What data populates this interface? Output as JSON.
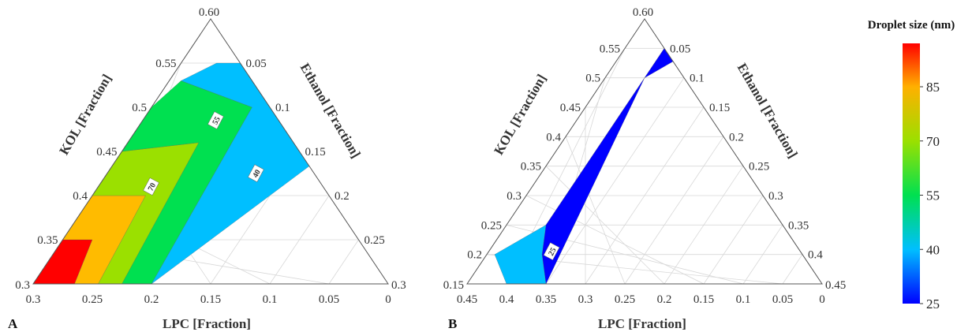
{
  "colorbar": {
    "title": "Droplet size (nm)",
    "ticks": [
      25,
      40,
      55,
      70,
      85
    ],
    "min": 25,
    "max": 97,
    "stops": [
      {
        "v": 25,
        "color": "#0000ff"
      },
      {
        "v": 40,
        "color": "#00bfff"
      },
      {
        "v": 55,
        "color": "#00e050"
      },
      {
        "v": 70,
        "color": "#9be000"
      },
      {
        "v": 85,
        "color": "#ffb000"
      },
      {
        "v": 97,
        "color": "#ff0000"
      }
    ]
  },
  "chart_data": [
    {
      "type": "ternary-contour",
      "panel": "A",
      "axes": {
        "bottom": {
          "label": "LPC [Fraction]",
          "range": [
            0.3,
            0
          ],
          "ticks": [
            "0.3",
            "0.25",
            "0.2",
            "0.15",
            "0.1",
            "0.05",
            "0"
          ]
        },
        "left": {
          "label": "KOL [Fraction]",
          "range": [
            0.3,
            0.6
          ],
          "ticks": [
            "0.3",
            "0.35",
            "0.4",
            "0.45",
            "0.5",
            "0.55",
            "0.60"
          ]
        },
        "right": {
          "label": "Ethanol [Fraction]",
          "range": [
            0.05,
            0.3
          ],
          "ticks": [
            "0.05",
            "0.1",
            "0.15",
            "0.2",
            "0.25",
            "0.3"
          ]
        }
      },
      "regions": [
        {
          "value": 95,
          "color": "#ff0000",
          "polygon": [
            [
              0.3,
              0.35
            ],
            [
              0.275,
              0.35
            ],
            [
              0.265,
              0.3
            ],
            [
              0.3,
              0.3
            ]
          ]
        },
        {
          "value": 85,
          "color": "#ffbb00",
          "polygon": [
            [
              0.3,
              0.4
            ],
            [
              0.255,
              0.4
            ],
            [
              0.245,
              0.3
            ],
            [
              0.265,
              0.3
            ],
            [
              0.275,
              0.35
            ],
            [
              0.3,
              0.35
            ]
          ]
        },
        {
          "value": 70,
          "color": "#9be000",
          "polygon": [
            [
              0.3,
              0.45
            ],
            [
              0.24,
              0.46
            ],
            [
              0.225,
              0.3
            ],
            [
              0.245,
              0.3
            ],
            [
              0.255,
              0.4
            ],
            [
              0.3,
              0.4
            ]
          ]
        },
        {
          "value": 55,
          "color": "#00e050",
          "polygon": [
            [
              0.3,
              0.5
            ],
            [
              0.29,
              0.53
            ],
            [
              0.215,
              0.5
            ],
            [
              0.2,
              0.3
            ],
            [
              0.225,
              0.3
            ],
            [
              0.24,
              0.46
            ],
            [
              0.3,
              0.45
            ]
          ]
        },
        {
          "value": 40,
          "color": "#00bfff",
          "polygon": [
            [
              0.29,
              0.53
            ],
            [
              0.27,
              0.55
            ],
            [
              0.11,
              0.55
            ],
            [
              0.1,
              0.5
            ],
            [
              0.2,
              0.3
            ],
            [
              0.215,
              0.5
            ]
          ]
        }
      ],
      "contour_labels": [
        {
          "text": "70",
          "lpc": 0.255,
          "kol": 0.41
        },
        {
          "text": "55",
          "lpc": 0.238,
          "kol": 0.485
        },
        {
          "text": "40",
          "lpc": 0.174,
          "kol": 0.425
        }
      ]
    },
    {
      "type": "ternary-contour",
      "panel": "B",
      "axes": {
        "bottom": {
          "label": "LPC [Fraction]",
          "range": [
            0.45,
            0
          ],
          "ticks": [
            "0.45",
            "0.4",
            "0.35",
            "0.3",
            "0.25",
            "0.2",
            "0.15",
            "0.1",
            "0.05",
            "0"
          ]
        },
        "left": {
          "label": "KOL [Fraction]",
          "range": [
            0.15,
            0.6
          ],
          "ticks": [
            "0.15",
            "0.2",
            "0.25",
            "0.3",
            "0.35",
            "0.4",
            "0.45",
            "0.5",
            "0.55",
            "0.60"
          ]
        },
        "right": {
          "label": "Ethanol [Fraction]",
          "range": [
            0.05,
            0.45
          ],
          "ticks": [
            "0.05",
            "0.1",
            "0.15",
            "0.2",
            "0.25",
            "0.3",
            "0.35",
            "0.4",
            "0.45"
          ]
        }
      },
      "regions": [
        {
          "value": 25,
          "color": "#0000ff",
          "polygon": [
            [
              0.4,
              0.55
            ],
            [
              0.36,
              0.55
            ],
            [
              0.4,
              0.5
            ],
            [
              0.35,
              0.15
            ],
            [
              0.38,
              0.2
            ],
            [
              0.4,
              0.25
            ]
          ]
        },
        {
          "value": 40,
          "color": "#00bfff",
          "polygon": [
            [
              0.4,
              0.25
            ],
            [
              0.38,
              0.2
            ],
            [
              0.35,
              0.15
            ],
            [
              0.4,
              0.15
            ],
            [
              0.44,
              0.2
            ]
          ]
        }
      ],
      "contour_labels": [
        {
          "text": "25",
          "lpc": 0.37,
          "kol": 0.205
        }
      ]
    }
  ]
}
